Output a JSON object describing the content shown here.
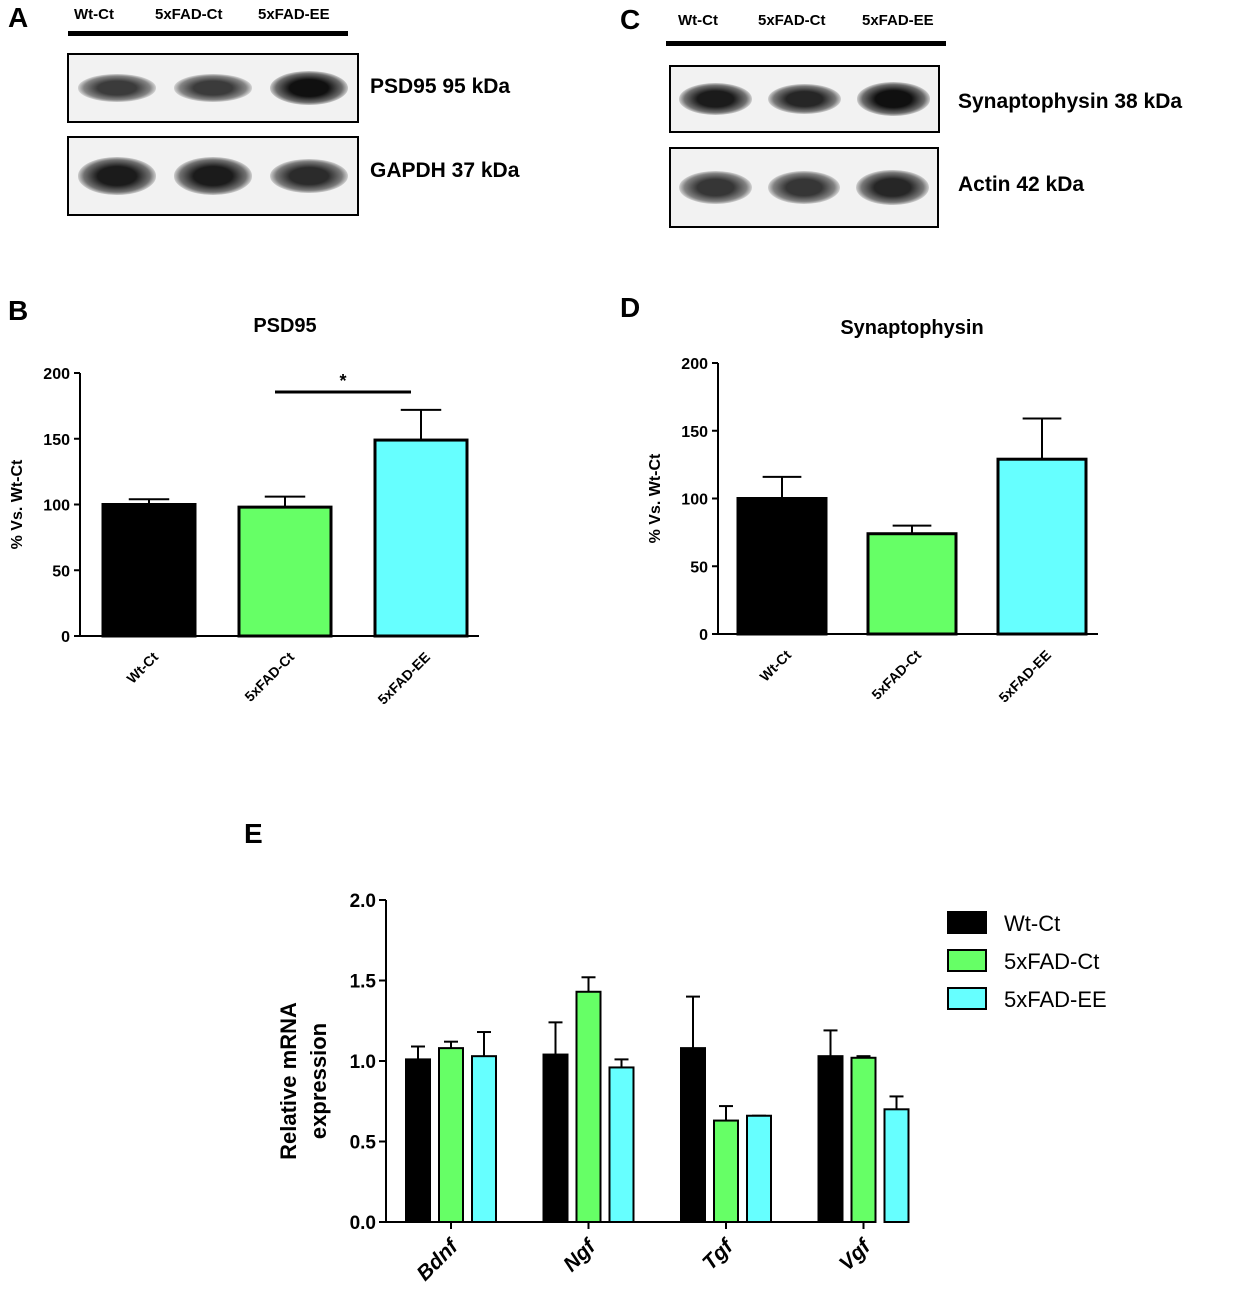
{
  "panels": {
    "A": {
      "letter": "A",
      "lanes": [
        "Wt-Ct",
        "5xFAD-Ct",
        "5xFAD-EE"
      ],
      "blots": [
        {
          "label": "PSD95 95 kDa",
          "intensity": [
            0.55,
            0.55,
            0.95
          ]
        },
        {
          "label": "GAPDH 37 kDa",
          "intensity": [
            0.85,
            0.85,
            0.7
          ]
        }
      ]
    },
    "C": {
      "letter": "C",
      "lanes": [
        "Wt-Ct",
        "5xFAD-Ct",
        "5xFAD-EE"
      ],
      "blots": [
        {
          "label": "Synaptophysin 38 kDa",
          "intensity": [
            0.85,
            0.75,
            0.95
          ]
        },
        {
          "label": "Actin 42 kDa",
          "intensity": [
            0.6,
            0.6,
            0.75
          ]
        }
      ]
    },
    "B": {
      "letter": "B"
    },
    "D": {
      "letter": "D"
    },
    "E": {
      "letter": "E"
    }
  },
  "colors": {
    "wt": "#000000",
    "fad_ct": "#66ff66",
    "fad_ee": "#66ffff"
  },
  "chart_data": [
    {
      "id": "B",
      "type": "bar",
      "title": "PSD95",
      "ylabel": "% Vs. Wt-Ct",
      "xlabel": "",
      "categories": [
        "Wt-Ct",
        "5xFAD-Ct",
        "5xFAD-EE"
      ],
      "values": [
        100,
        98,
        149
      ],
      "errors": [
        4,
        8,
        23
      ],
      "ylim": [
        0,
        200
      ],
      "yticks": [
        "0",
        "50",
        "100",
        "150",
        "200"
      ],
      "significance": {
        "from": 1,
        "to": 2,
        "label": "*"
      },
      "grid": false
    },
    {
      "id": "D",
      "type": "bar",
      "title": "Synaptophysin",
      "ylabel": "% Vs. Wt-Ct",
      "xlabel": "",
      "categories": [
        "Wt-Ct",
        "5xFAD-Ct",
        "5xFAD-EE"
      ],
      "values": [
        100,
        74,
        129
      ],
      "errors": [
        16,
        6,
        30
      ],
      "ylim": [
        0,
        200
      ],
      "yticks": [
        "0",
        "50",
        "100",
        "150",
        "200"
      ],
      "grid": false
    },
    {
      "id": "E",
      "type": "bar",
      "title": "",
      "ylabel": "Relative mRNA expression",
      "ylabel_lines": [
        "Relative mRNA",
        "expression"
      ],
      "xlabel": "",
      "categories": [
        "Bdnf",
        "Ngf",
        "Tgf",
        "Vgf"
      ],
      "ylim": [
        0,
        2
      ],
      "yticks": [
        "0.0",
        "0.5",
        "1.0",
        "1.5",
        "2.0"
      ],
      "legend_position": "right",
      "series": [
        {
          "name": "Wt-Ct",
          "values": [
            1.01,
            1.04,
            1.08,
            1.03
          ],
          "errors": [
            0.08,
            0.2,
            0.32,
            0.16
          ]
        },
        {
          "name": "5xFAD-Ct",
          "values": [
            1.08,
            1.43,
            0.63,
            1.02
          ],
          "errors": [
            0.04,
            0.09,
            0.09,
            0.01
          ]
        },
        {
          "name": "5xFAD-EE",
          "values": [
            1.03,
            0.96,
            0.66,
            0.7
          ],
          "errors": [
            0.15,
            0.05,
            0.0,
            0.08
          ]
        }
      ],
      "grid": false
    }
  ]
}
